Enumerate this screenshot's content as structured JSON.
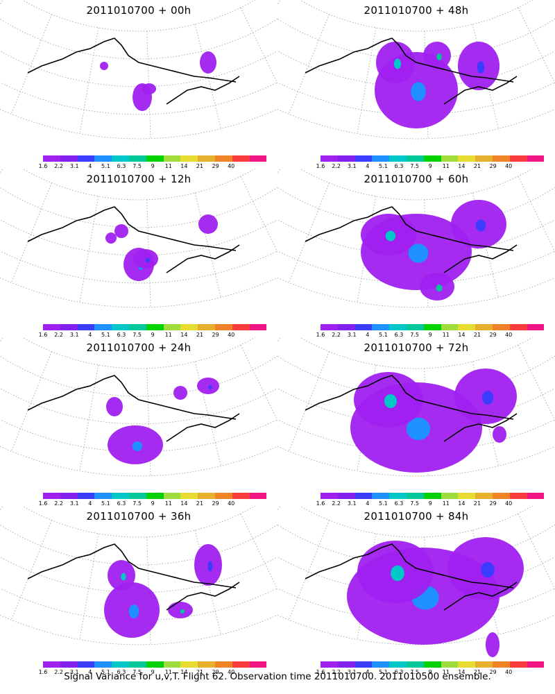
{
  "colorbar": {
    "ticks": [
      "1.6",
      "2.2",
      "3.1",
      "4",
      "5.1",
      "6.3",
      "7.5",
      "9",
      "11",
      "14",
      "21",
      "29",
      "40"
    ],
    "colors": [
      "#a020f0",
      "#8220f0",
      "#3c3cff",
      "#1e90ff",
      "#00c8c8",
      "#00c89a",
      "#00d200",
      "#a0dc3c",
      "#e6dc32",
      "#e6af2d",
      "#f08228",
      "#fa3c3c",
      "#f01484"
    ]
  },
  "panels": [
    {
      "title": "2011010700 + 00h",
      "level": 0
    },
    {
      "title": "2011010700 + 48h",
      "level": 4
    },
    {
      "title": "2011010700 + 12h",
      "level": 1
    },
    {
      "title": "2011010700 + 60h",
      "level": 5
    },
    {
      "title": "2011010700 + 24h",
      "level": 2
    },
    {
      "title": "2011010700 + 72h",
      "level": 6
    },
    {
      "title": "2011010700 + 36h",
      "level": 3
    },
    {
      "title": "2011010700 + 84h",
      "level": 7
    }
  ],
  "caption": "Signal Variance for u,v,T. Flight 62. Observation time 2011010700. 2011010500 ensemble."
}
